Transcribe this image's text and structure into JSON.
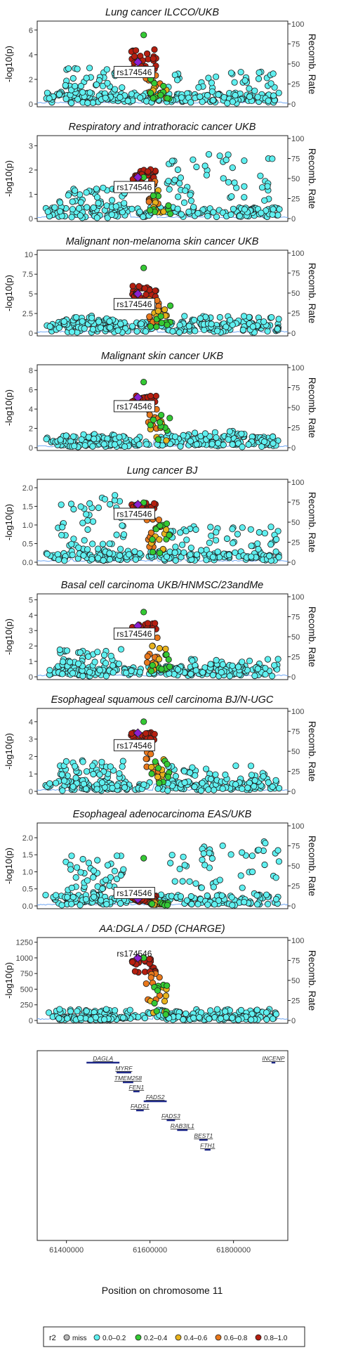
{
  "figure": {
    "x_axis_title": "Position on chromosome 11",
    "x_ticks": [
      "61400000",
      "61600000",
      "61800000"
    ],
    "y_left_label": "-log10(p)",
    "y_right_label": "Recomb. Rate",
    "lead_snp": "rs174546"
  },
  "legend": {
    "title": "r2",
    "entries": [
      {
        "label": "miss",
        "color": "#b8b8b8"
      },
      {
        "label": "0.0–0.2",
        "color": "#5ff0f0"
      },
      {
        "label": "0.2–0.4",
        "color": "#34c934"
      },
      {
        "label": "0.4–0.6",
        "color": "#e8b21c"
      },
      {
        "label": "0.6–0.8",
        "color": "#e9781c"
      },
      {
        "label": "0.8–1.0",
        "color": "#b51f10"
      }
    ],
    "lead_color": "#8a1fd0",
    "recomb_color": "#6ea6f3"
  },
  "genes": {
    "items": [
      {
        "name": "DAGLA",
        "start": 61448000,
        "end": 61527000
      },
      {
        "name": "MYRF",
        "start": 61520000,
        "end": 61555000
      },
      {
        "name": "TMEM258",
        "start": 61535000,
        "end": 61560000
      },
      {
        "name": "FEN1",
        "start": 61560000,
        "end": 61575000
      },
      {
        "name": "FADS2",
        "start": 61585000,
        "end": 61640000
      },
      {
        "name": "FADS1",
        "start": 61567000,
        "end": 61585000
      },
      {
        "name": "FADS3",
        "start": 61640000,
        "end": 61660000
      },
      {
        "name": "RAB3IL1",
        "start": 61665000,
        "end": 61690000
      },
      {
        "name": "BEST1",
        "start": 61718000,
        "end": 61738000
      },
      {
        "name": "FTH1",
        "start": 61731000,
        "end": 61745000
      },
      {
        "name": "INCENP",
        "start": 61891000,
        "end": 61900000
      }
    ]
  },
  "chart_data": [
    {
      "type": "scatter",
      "title": "Lung cancer ILCCO/UKB",
      "ylim": [
        0,
        6.5
      ],
      "yticks": [
        0,
        2,
        4,
        6
      ],
      "lead_value": 3.4,
      "lead_label_value": 2.6,
      "block_min": 2.6,
      "block_max": 4.6,
      "peak_value": 5.6,
      "bg_max": 3.0,
      "east_max": 2.6,
      "recomb_ylim": [
        0,
        100
      ],
      "recomb_ticks": [
        0,
        25,
        50,
        75,
        100
      ]
    },
    {
      "type": "scatter",
      "title": "Respiratory and intrathoracic cancer UKB",
      "ylim": [
        0,
        3.3
      ],
      "yticks": [
        0,
        1,
        2,
        3
      ],
      "lead_value": 1.7,
      "lead_label_value": 1.3,
      "block_min": 1.55,
      "block_max": 2.05,
      "peak_value": 1.7,
      "bg_max": 1.3,
      "east_max": 2.7,
      "recomb_ylim": [
        0,
        100
      ],
      "recomb_ticks": [
        0,
        25,
        50,
        75,
        100
      ]
    },
    {
      "type": "scatter",
      "title": "Malignant non-melanoma skin cancer UKB",
      "ylim": [
        0,
        10.2
      ],
      "yticks": [
        0,
        2.5,
        5.0,
        7.5,
        10.0
      ],
      "lead_value": 5.0,
      "lead_label_value": 3.7,
      "block_min": 4.4,
      "block_max": 6.0,
      "peak_value": 8.3,
      "bg_max": 2.2,
      "east_max": 2.2,
      "recomb_ylim": [
        0,
        100
      ],
      "recomb_ticks": [
        0,
        25,
        50,
        75,
        100
      ]
    },
    {
      "type": "scatter",
      "title": "Malignant skin cancer UKB",
      "ylim": [
        0,
        8.3
      ],
      "yticks": [
        0,
        2,
        4,
        6,
        8
      ],
      "lead_value": 5.2,
      "lead_label_value": 4.3,
      "block_min": 4.6,
      "block_max": 5.4,
      "peak_value": 6.8,
      "bg_max": 1.4,
      "east_max": 1.8,
      "recomb_ylim": [
        0,
        100
      ],
      "recomb_ticks": [
        0,
        25,
        50,
        75,
        100
      ]
    },
    {
      "type": "scatter",
      "title": "Lung cancer BJ",
      "ylim": [
        0,
        2.15
      ],
      "yticks": [
        0,
        0.5,
        1.0,
        1.5,
        2.0
      ],
      "lead_value": 1.55,
      "lead_label_value": 1.3,
      "block_min": 1.35,
      "block_max": 1.6,
      "peak_value": 1.6,
      "bg_max": 1.8,
      "east_max": 1.0,
      "recomb_ylim": [
        0,
        100
      ],
      "recomb_ticks": [
        0,
        25,
        50,
        75,
        100
      ]
    },
    {
      "type": "scatter",
      "title": "Basal cell carcinoma UKB/HNMSC/23andMe",
      "ylim": [
        0,
        5.2
      ],
      "yticks": [
        0,
        1,
        2,
        3,
        4,
        5
      ],
      "lead_value": 3.3,
      "lead_label_value": 2.8,
      "block_min": 2.7,
      "block_max": 3.5,
      "peak_value": 4.2,
      "bg_max": 1.8,
      "east_max": 1.2,
      "recomb_ylim": [
        0,
        100
      ],
      "recomb_ticks": [
        0,
        25,
        50,
        75,
        100
      ]
    },
    {
      "type": "scatter",
      "title": "Esophageal squamous cell carcinoma BJ/N-UGC",
      "ylim": [
        0,
        4.6
      ],
      "yticks": [
        0,
        1,
        2,
        3,
        4
      ],
      "lead_value": 3.35,
      "lead_label_value": 2.65,
      "block_min": 2.9,
      "block_max": 3.4,
      "peak_value": 4.0,
      "bg_max": 1.8,
      "east_max": 1.5,
      "recomb_ylim": [
        0,
        100
      ],
      "recomb_ticks": [
        0,
        25,
        50,
        75,
        100
      ]
    },
    {
      "type": "scatter",
      "title": "Esophageal adenocarcinoma EAS/UKB",
      "ylim": [
        0,
        2.35
      ],
      "yticks": [
        0,
        0.5,
        1.0,
        1.5,
        2.0
      ],
      "lead_value": 0.2,
      "lead_label_value": 0.38,
      "block_min": 0.12,
      "block_max": 0.3,
      "peak_value": 1.4,
      "bg_max": 1.5,
      "east_max": 1.9,
      "recomb_ylim": [
        0,
        100
      ],
      "recomb_ticks": [
        0,
        25,
        50,
        75,
        100
      ]
    },
    {
      "type": "scatter",
      "title": "AA:DGLA / D5D (CHARGE)",
      "ylim": [
        0,
        1280
      ],
      "yticks": [
        0,
        250,
        500,
        750,
        1000,
        1250
      ],
      "lead_value": 1000,
      "lead_label_value": 1070,
      "block_min": 760,
      "block_max": 1000,
      "peak_value": 1000,
      "bg_max": 60,
      "east_max": 60,
      "recomb_ylim": [
        0,
        100
      ],
      "recomb_ticks": [
        0,
        25,
        50,
        75,
        100
      ]
    }
  ]
}
